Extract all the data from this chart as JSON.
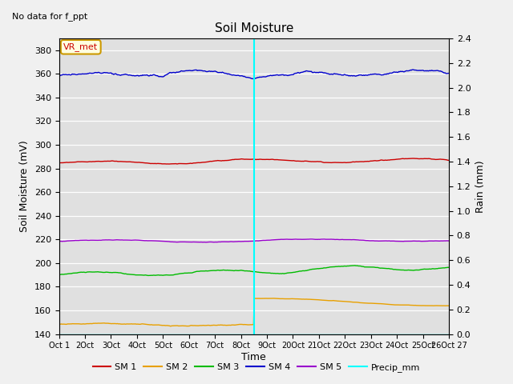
{
  "title": "Soil Moisture",
  "xlabel": "Time",
  "ylabel_left": "Soil Moisture (mV)",
  "ylabel_right": "Rain (mm)",
  "no_data_text": "No data for f_ppt",
  "vr_met_label": "VR_met",
  "ylim_left": [
    140,
    390
  ],
  "ylim_right": [
    0.0,
    2.4
  ],
  "yticks_left": [
    140,
    160,
    180,
    200,
    220,
    240,
    260,
    280,
    300,
    320,
    340,
    360,
    380
  ],
  "yticks_right": [
    0.0,
    0.2,
    0.4,
    0.6,
    0.8,
    1.0,
    1.2,
    1.4,
    1.6,
    1.8,
    2.0,
    2.2,
    2.4
  ],
  "x_tick_labels": [
    "Oct 1",
    "2Oct",
    "3Oct",
    "4Oct",
    "5Oct",
    "6Oct",
    "7Oct",
    "8Oct",
    "9Oct",
    "20Oct",
    "21Oct",
    "22Oct",
    "23Oct",
    "24Oct",
    "25Oct",
    "26Oct 27"
  ],
  "bg_color": "#e0e0e0",
  "fig_bg_color": "#f0f0f0",
  "vline_color": "cyan",
  "sm1_color": "#cc0000",
  "sm2_color": "#e8a000",
  "sm3_color": "#00bb00",
  "sm4_color": "#0000cc",
  "sm5_color": "#9900cc",
  "precip_color": "cyan"
}
